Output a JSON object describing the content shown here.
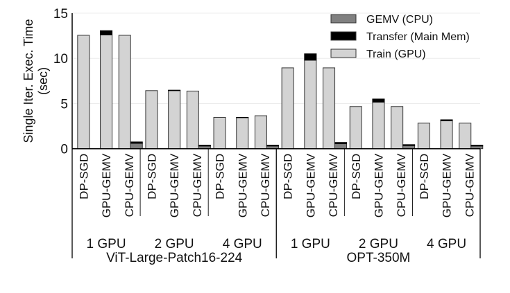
{
  "chart_data": {
    "type": "bar",
    "stacked": true,
    "ylabel": [
      "Single Iter. Exec. Time",
      "(sec)"
    ],
    "ylim": [
      0,
      15
    ],
    "yticks": [
      "0",
      "5",
      "10",
      "15"
    ],
    "grid": true,
    "legend_placement": "top-right",
    "legend": [
      {
        "name": "GEMV (CPU)",
        "color": "#808080"
      },
      {
        "name": "Transfer (Main Mem)",
        "color": "#000000"
      },
      {
        "name": "Train (GPU)",
        "color": "#d3d3d3"
      }
    ],
    "models": [
      {
        "name": "ViT-Large-Patch16-224",
        "groups": [
          {
            "name": "1 GPU",
            "bars": [
              {
                "label": "DP-SGD",
                "train": 12.55,
                "transfer": 0,
                "cpu_gemv": null,
                "cpu_transfer": null
              },
              {
                "label": "GPU-GEMV",
                "train": 12.6,
                "transfer": 0.46,
                "cpu_gemv": null,
                "cpu_transfer": null
              },
              {
                "label": "CPU-GEMV",
                "train": 12.55,
                "transfer": 0,
                "cpu_gemv": 0.6,
                "cpu_transfer": 0.15
              }
            ]
          },
          {
            "name": "2 GPU",
            "bars": [
              {
                "label": "DP-SGD",
                "train": 6.43,
                "transfer": 0,
                "cpu_gemv": null,
                "cpu_transfer": null
              },
              {
                "label": "GPU-GEMV",
                "train": 6.43,
                "transfer": 0.05,
                "cpu_gemv": null,
                "cpu_transfer": null
              },
              {
                "label": "CPU-GEMV",
                "train": 6.38,
                "transfer": 0,
                "cpu_gemv": 0.3,
                "cpu_transfer": 0.1
              }
            ]
          },
          {
            "name": "4 GPU",
            "bars": [
              {
                "label": "DP-SGD",
                "train": 3.47,
                "transfer": 0,
                "cpu_gemv": null,
                "cpu_transfer": null
              },
              {
                "label": "GPU-GEMV",
                "train": 3.44,
                "transfer": 0.03,
                "cpu_gemv": null,
                "cpu_transfer": null
              },
              {
                "label": "CPU-GEMV",
                "train": 3.65,
                "transfer": 0,
                "cpu_gemv": 0.3,
                "cpu_transfer": 0.1
              }
            ]
          }
        ]
      },
      {
        "name": "OPT-350M",
        "groups": [
          {
            "name": "1 GPU",
            "bars": [
              {
                "label": "DP-SGD",
                "train": 8.95,
                "transfer": 0,
                "cpu_gemv": null,
                "cpu_transfer": null
              },
              {
                "label": "GPU-GEMV",
                "train": 9.8,
                "transfer": 0.7,
                "cpu_gemv": null,
                "cpu_transfer": null
              },
              {
                "label": "CPU-GEMV",
                "train": 8.95,
                "transfer": 0,
                "cpu_gemv": 0.55,
                "cpu_transfer": 0.14
              }
            ]
          },
          {
            "name": "2 GPU",
            "bars": [
              {
                "label": "DP-SGD",
                "train": 4.67,
                "transfer": 0,
                "cpu_gemv": null,
                "cpu_transfer": null
              },
              {
                "label": "GPU-GEMV",
                "train": 5.15,
                "transfer": 0.35,
                "cpu_gemv": null,
                "cpu_transfer": null
              },
              {
                "label": "CPU-GEMV",
                "train": 4.67,
                "transfer": 0,
                "cpu_gemv": 0.35,
                "cpu_transfer": 0.1
              }
            ]
          },
          {
            "name": "4 GPU",
            "bars": [
              {
                "label": "DP-SGD",
                "train": 2.83,
                "transfer": 0,
                "cpu_gemv": null,
                "cpu_transfer": null
              },
              {
                "label": "GPU-GEMV",
                "train": 3.1,
                "transfer": 0.1,
                "cpu_gemv": null,
                "cpu_transfer": null
              },
              {
                "label": "CPU-GEMV",
                "train": 2.83,
                "transfer": 0,
                "cpu_gemv": 0.3,
                "cpu_transfer": 0.1
              }
            ]
          }
        ]
      }
    ]
  }
}
